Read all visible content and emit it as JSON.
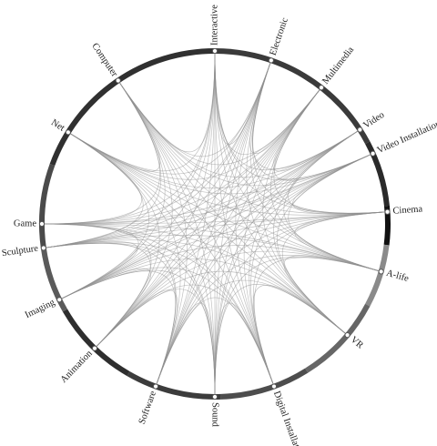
{
  "diagram": {
    "type": "radial-edge-bundling",
    "nodes": [
      {
        "label": "Interactive",
        "angle": 0
      },
      {
        "label": "Electronic",
        "angle": 19
      },
      {
        "label": "Multimedia",
        "angle": 38
      },
      {
        "label": "Video",
        "angle": 57
      },
      {
        "label": "Video Installation",
        "angle": 66
      },
      {
        "label": "Cinema",
        "angle": 86
      },
      {
        "label": "A-life",
        "angle": 106
      },
      {
        "label": "VR",
        "angle": 130
      },
      {
        "label": "Digital Installation",
        "angle": 160
      },
      {
        "label": "Sound",
        "angle": 180
      },
      {
        "label": "Software",
        "angle": 200
      },
      {
        "label": "Animation",
        "angle": 224
      },
      {
        "label": "Imaging",
        "angle": 244
      },
      {
        "label": "Sculpture",
        "angle": 262
      },
      {
        "label": "Game",
        "angle": 270
      },
      {
        "label": "Net",
        "angle": 302
      },
      {
        "label": "Computer",
        "angle": 326
      }
    ],
    "ring_segments": [
      {
        "from": 0,
        "to": 62,
        "color": "#3a3a3a"
      },
      {
        "from": 62,
        "to": 84,
        "color": "#2a2a2a"
      },
      {
        "from": 84,
        "to": 97,
        "color": "#111111"
      },
      {
        "from": 97,
        "to": 118,
        "color": "#8a8a8a"
      },
      {
        "from": 118,
        "to": 148,
        "color": "#666666"
      },
      {
        "from": 148,
        "to": 178,
        "color": "#4d4d4d"
      },
      {
        "from": 178,
        "to": 210,
        "color": "#3c3c3c"
      },
      {
        "from": 210,
        "to": 240,
        "color": "#2e2e2e"
      },
      {
        "from": 240,
        "to": 262,
        "color": "#5a5a5a"
      },
      {
        "from": 262,
        "to": 290,
        "color": "#4a4a4a"
      },
      {
        "from": 290,
        "to": 360,
        "color": "#303030"
      }
    ]
  }
}
